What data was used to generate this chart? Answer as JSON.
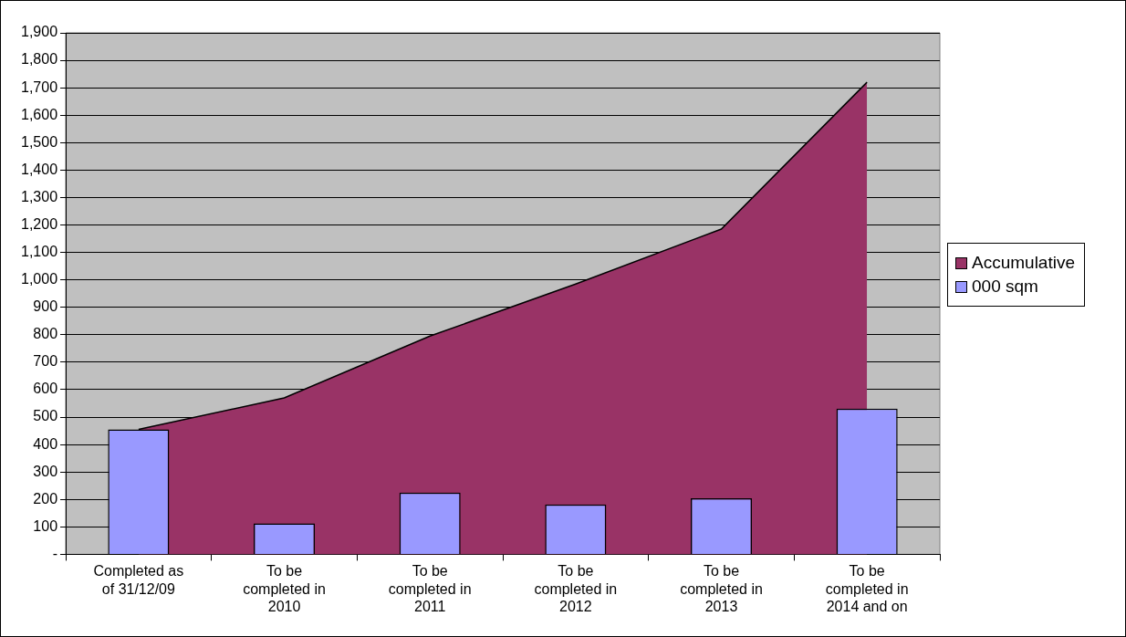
{
  "chart_data": {
    "type": "bar",
    "categories": [
      "Completed as of 31/12/09",
      "To be completed in 2010",
      "To be completed in 2011",
      "To be completed in 2012",
      "To be completed in 2013",
      "To be completed in 2014 and on"
    ],
    "series": [
      {
        "name": "Accumulative",
        "type": "area",
        "color": "#993366",
        "values": [
          455,
          570,
          795,
          985,
          1185,
          1720
        ]
      },
      {
        "name": "000 sqm",
        "color": "#9999ff",
        "values": [
          455,
          113,
          225,
          182,
          204,
          531
        ]
      }
    ],
    "ylim": [
      0,
      1900
    ],
    "yticks": [
      {
        "value": 0,
        "label": "-"
      },
      {
        "value": 100,
        "label": "100"
      },
      {
        "value": 200,
        "label": "200"
      },
      {
        "value": 300,
        "label": "300"
      },
      {
        "value": 400,
        "label": "400"
      },
      {
        "value": 500,
        "label": "500"
      },
      {
        "value": 600,
        "label": "600"
      },
      {
        "value": 700,
        "label": "700"
      },
      {
        "value": 800,
        "label": "800"
      },
      {
        "value": 900,
        "label": "900"
      },
      {
        "value": 1000,
        "label": "1,000"
      },
      {
        "value": 1100,
        "label": "1,100"
      },
      {
        "value": 1200,
        "label": "1,200"
      },
      {
        "value": 1300,
        "label": "1,300"
      },
      {
        "value": 1400,
        "label": "1,400"
      },
      {
        "value": 1500,
        "label": "1,500"
      },
      {
        "value": 1600,
        "label": "1,600"
      },
      {
        "value": 1700,
        "label": "1,700"
      },
      {
        "value": 1800,
        "label": "1,800"
      },
      {
        "value": 1900,
        "label": "1,900"
      }
    ],
    "grid": "y",
    "legend": "right"
  }
}
